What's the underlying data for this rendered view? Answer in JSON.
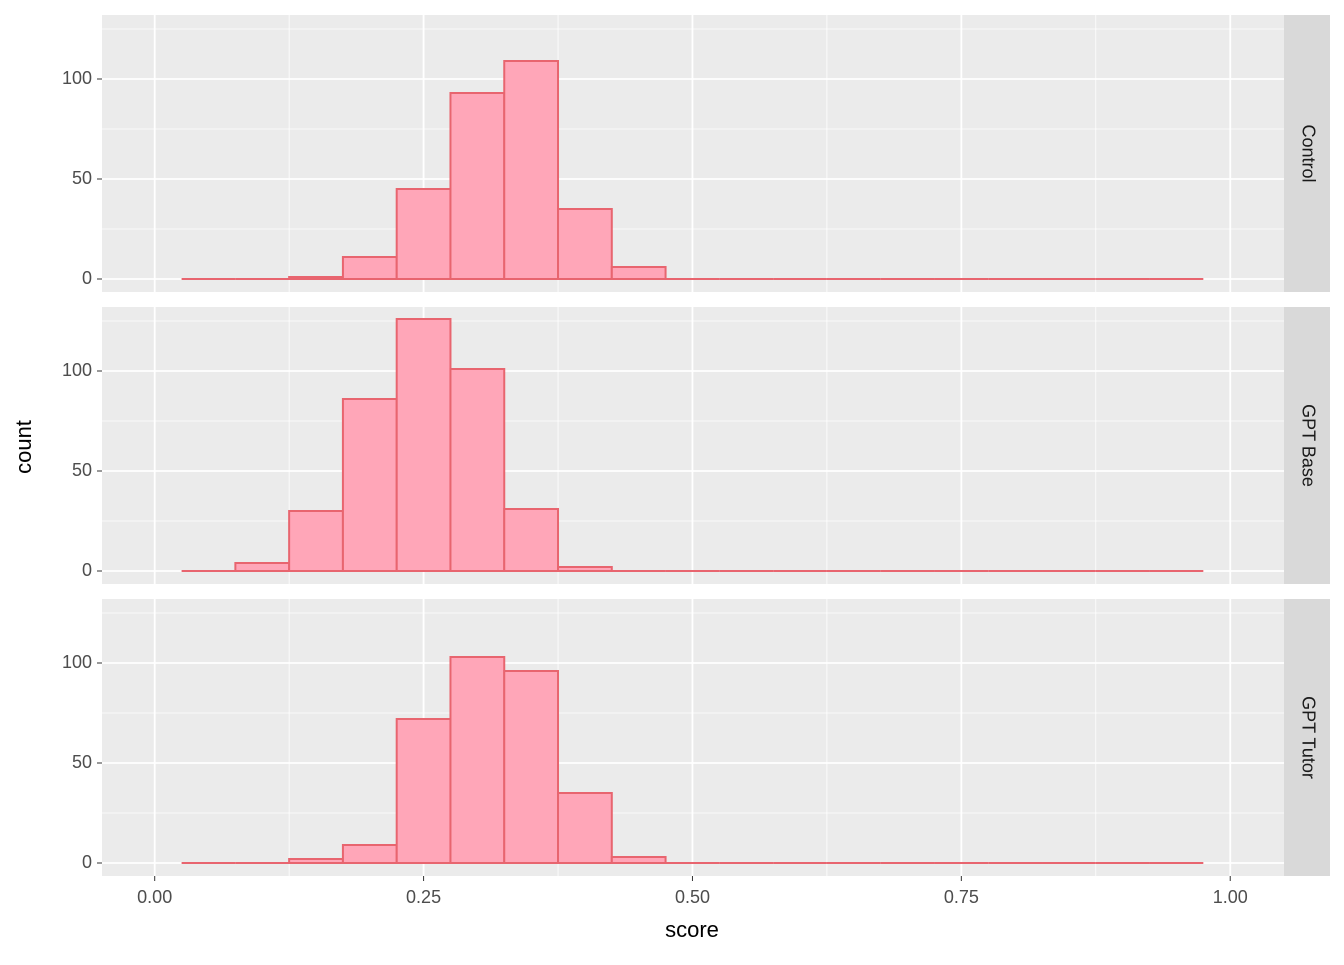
{
  "chart_data": {
    "type": "histogram",
    "facet": "rows",
    "xlabel": "score",
    "ylabel": "count",
    "bins": [
      0.025,
      0.075,
      0.125,
      0.175,
      0.225,
      0.275,
      0.325,
      0.375,
      0.425,
      0.475,
      0.525,
      0.575,
      0.625,
      0.675,
      0.725,
      0.775,
      0.825,
      0.875,
      0.925,
      0.975
    ],
    "series": [
      {
        "name": "Control",
        "color": "#e8656f",
        "fill": "#ffa6b8",
        "values": [
          0,
          0,
          1,
          11,
          45,
          93,
          109,
          35,
          6,
          0,
          0,
          0,
          0,
          0,
          0,
          0,
          0,
          0,
          0
        ]
      },
      {
        "name": "GPT Base",
        "color": "#e8656f",
        "fill": "#ffa6b8",
        "values": [
          0,
          4,
          30,
          86,
          126,
          101,
          31,
          2,
          0,
          0,
          0,
          0,
          0,
          0,
          0,
          0,
          0,
          0,
          0
        ]
      },
      {
        "name": "GPT Tutor",
        "color": "#e8656f",
        "fill": "#ffa6b8",
        "values": [
          0,
          0,
          2,
          9,
          72,
          103,
          96,
          35,
          3,
          0,
          0,
          0,
          0,
          0,
          0,
          0,
          0,
          0,
          0
        ]
      }
    ],
    "xlim": [
      -0.049,
      1.05
    ],
    "ylim": [
      -6.5,
      132
    ],
    "xticks": [
      {
        "value": 0,
        "label": "0.00"
      },
      0.25,
      {
        "value": 0.5,
        "label": "0.50"
      },
      0.75,
      {
        "value": 1,
        "label": "1.00"
      }
    ],
    "xminorticks": [
      0.125,
      0.375,
      0.625,
      0.875
    ],
    "yticks": [
      0,
      50,
      100
    ],
    "yminorticks": [
      25,
      75,
      125
    ],
    "grid": true
  }
}
